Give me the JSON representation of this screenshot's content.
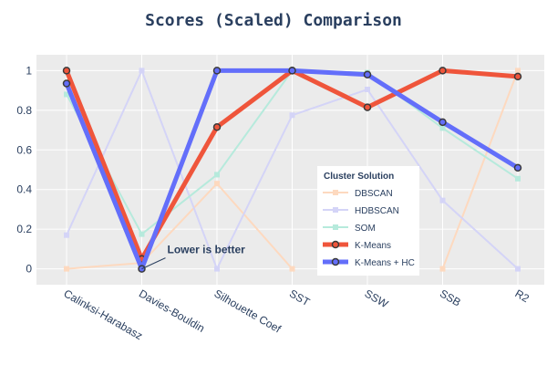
{
  "chart_data": {
    "type": "line",
    "title": "Scores (Scaled) Comparison",
    "categories": [
      "Calinksi-Harabasz",
      "Davies-Bouldin",
      "Silhouette Coef",
      "SST",
      "SSW",
      "SSB",
      "R2"
    ],
    "ylim": [
      -0.08,
      1.08
    ],
    "yticks": [
      0,
      0.2,
      0.4,
      0.6,
      0.8,
      1
    ],
    "ytick_labels": [
      "0",
      "0.2",
      "0.4",
      "0.6",
      "0.8",
      "1"
    ],
    "grid": true,
    "legend": {
      "title": "Cluster Solution",
      "position": "right-center"
    },
    "series": [
      {
        "name": "DBSCAN",
        "values": [
          0,
          0.03,
          0.43,
          0,
          null,
          0,
          1
        ],
        "color": "#fdd9bf",
        "emphasis": false
      },
      {
        "name": "HDBSCAN",
        "values": [
          0.17,
          1,
          0,
          0.775,
          0.905,
          0.345,
          0
        ],
        "color": "#d4d4f7",
        "emphasis": false
      },
      {
        "name": "SOM",
        "values": [
          0.88,
          0.175,
          0.475,
          1,
          0.99,
          0.71,
          0.455
        ],
        "color": "#b6eadc",
        "emphasis": false
      },
      {
        "name": "K-Means",
        "values": [
          1,
          0.05,
          0.715,
          1,
          0.815,
          1,
          0.97
        ],
        "color": "#ef553b",
        "emphasis": true
      },
      {
        "name": "K-Means + HC",
        "values": [
          0.935,
          0,
          1,
          1,
          0.98,
          0.74,
          0.51
        ],
        "color": "#636efa",
        "emphasis": true
      }
    ],
    "annotations": [
      {
        "text": "Lower is better",
        "x": "Davies-Bouldin",
        "y": 0
      }
    ]
  }
}
